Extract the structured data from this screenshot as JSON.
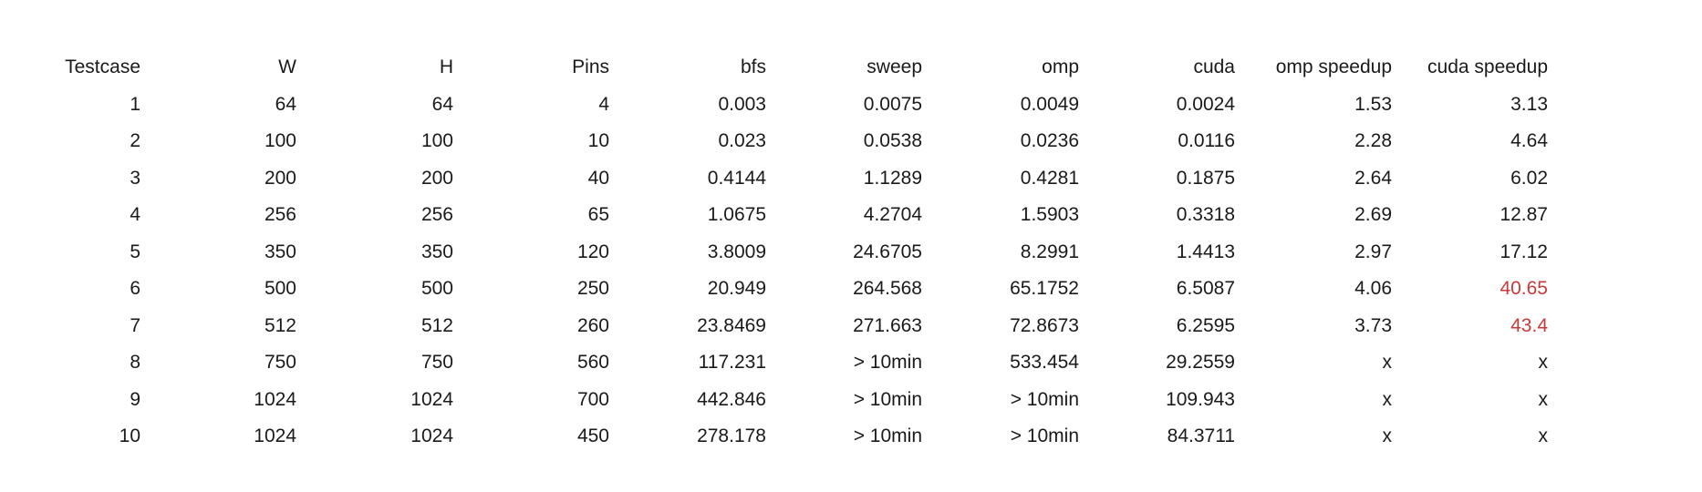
{
  "table": {
    "headers": [
      "Testcase",
      "W",
      "H",
      "Pins",
      "bfs",
      "sweep",
      "omp",
      "cuda",
      "omp speedup",
      "cuda speedup"
    ],
    "rows": [
      [
        "1",
        "64",
        "64",
        "4",
        "0.003",
        "0.0075",
        "0.0049",
        "0.0024",
        "1.53",
        "3.13"
      ],
      [
        "2",
        "100",
        "100",
        "10",
        "0.023",
        "0.0538",
        "0.0236",
        "0.0116",
        "2.28",
        "4.64"
      ],
      [
        "3",
        "200",
        "200",
        "40",
        "0.4144",
        "1.1289",
        "0.4281",
        "0.1875",
        "2.64",
        "6.02"
      ],
      [
        "4",
        "256",
        "256",
        "65",
        "1.0675",
        "4.2704",
        "1.5903",
        "0.3318",
        "2.69",
        "12.87"
      ],
      [
        "5",
        "350",
        "350",
        "120",
        "3.8009",
        "24.6705",
        "8.2991",
        "1.4413",
        "2.97",
        "17.12"
      ],
      [
        "6",
        "500",
        "500",
        "250",
        "20.949",
        "264.568",
        "65.1752",
        "6.5087",
        "4.06",
        "40.65"
      ],
      [
        "7",
        "512",
        "512",
        "260",
        "23.8469",
        "271.663",
        "72.8673",
        "6.2595",
        "3.73",
        "43.4"
      ],
      [
        "8",
        "750",
        "750",
        "560",
        "117.231",
        "> 10min",
        "533.454",
        "29.2559",
        "x",
        "x"
      ],
      [
        "9",
        "1024",
        "1024",
        "700",
        "442.846",
        "> 10min",
        "> 10min",
        "109.943",
        "x",
        "x"
      ],
      [
        "10",
        "1024",
        "1024",
        "450",
        "278.178",
        "> 10min",
        "> 10min",
        "84.3711",
        "x",
        "x"
      ]
    ],
    "highlight_color": "#c83a3a",
    "highlighted_cells": [
      [
        5,
        9
      ],
      [
        6,
        9
      ]
    ]
  }
}
